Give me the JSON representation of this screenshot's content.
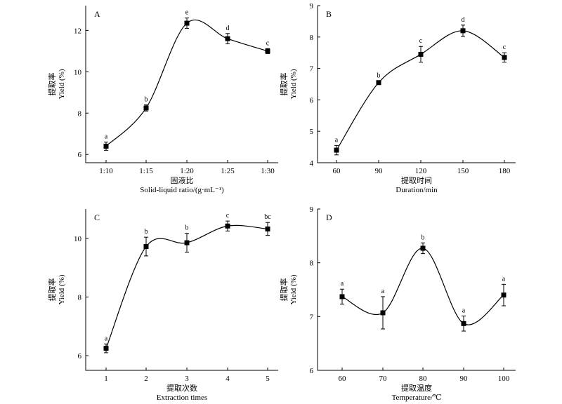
{
  "chart_data": [
    {
      "panel": "A",
      "type": "scatter",
      "categories": [
        "1:10",
        "1:15",
        "1:20",
        "1:25",
        "1:30"
      ],
      "values": [
        6.4,
        8.25,
        12.35,
        11.6,
        11.0
      ],
      "errors": [
        0.2,
        0.15,
        0.25,
        0.25,
        0.12
      ],
      "significance": [
        "a",
        "b",
        "e",
        "d",
        "c"
      ],
      "xlabel_cn": "固液比",
      "xlabel_en": "Solid-liquid ratio/(g·mL⁻¹)",
      "ylabel_cn": "提取率",
      "ylabel_en": "Yield (%)",
      "ylim": [
        5.6,
        13.2
      ],
      "yticks": [
        6,
        8,
        10,
        12
      ]
    },
    {
      "panel": "B",
      "type": "scatter",
      "categories": [
        "60",
        "90",
        "120",
        "150",
        "180"
      ],
      "values": [
        4.4,
        6.55,
        7.45,
        8.2,
        7.35
      ],
      "errors": [
        0.15,
        0.05,
        0.25,
        0.18,
        0.15
      ],
      "significance": [
        "a",
        "b",
        "c",
        "d",
        "c"
      ],
      "xlabel_cn": "提取时间",
      "xlabel_en": "Duration/min",
      "ylabel_cn": "提取率",
      "ylabel_en": "Yield (%)",
      "ylim": [
        4,
        9
      ],
      "yticks": [
        4,
        5,
        6,
        7,
        8,
        9
      ]
    },
    {
      "panel": "C",
      "type": "scatter",
      "categories": [
        "1",
        "2",
        "3",
        "4",
        "5"
      ],
      "values": [
        6.25,
        9.72,
        9.85,
        10.42,
        10.32
      ],
      "errors": [
        0.15,
        0.32,
        0.32,
        0.17,
        0.22
      ],
      "significance": [
        "a",
        "b",
        "b",
        "c",
        "bc"
      ],
      "xlabel_cn": "提取次数",
      "xlabel_en": "Extraction times",
      "ylabel_cn": "提取率",
      "ylabel_en": "Yield (%)",
      "ylim": [
        5.5,
        11
      ],
      "yticks": [
        6,
        8,
        10
      ]
    },
    {
      "panel": "D",
      "type": "scatter",
      "categories": [
        "60",
        "70",
        "80",
        "90",
        "100"
      ],
      "values": [
        7.37,
        7.07,
        8.27,
        6.87,
        7.4
      ],
      "errors": [
        0.14,
        0.3,
        0.1,
        0.14,
        0.2
      ],
      "significance": [
        "a",
        "a",
        "b",
        "a",
        "a"
      ],
      "xlabel_cn": "提取温度",
      "xlabel_en": "Temperature/℃",
      "ylabel_cn": "提取率",
      "ylabel_en": "Yield (%)",
      "ylim": [
        6,
        9
      ],
      "yticks": [
        6,
        7,
        8,
        9
      ]
    }
  ]
}
